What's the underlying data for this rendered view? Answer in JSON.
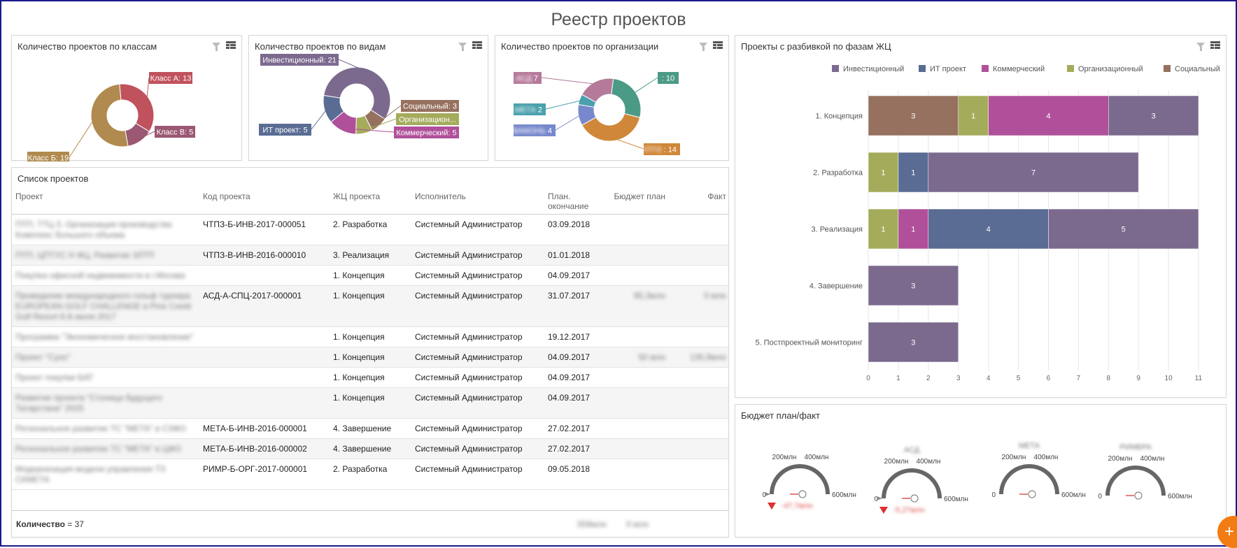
{
  "page": {
    "title": "Реестр проектов"
  },
  "panels": {
    "classes": {
      "title": "Количество проектов по классам"
    },
    "types": {
      "title": "Количество проектов по видам"
    },
    "orgs": {
      "title": "Количество проектов по организации"
    },
    "phases": {
      "title": "Проекты с разбивкой по фазам ЖЦ"
    },
    "list": {
      "title": "Список проектов"
    },
    "budget": {
      "title": "Бюджет план/факт"
    }
  },
  "colors": {
    "investment": "#7b6a8e",
    "it": "#5a6c93",
    "commercial": "#b0509a",
    "organizational": "#a4ac5c",
    "social": "#96715f",
    "class_a": "#c0525d",
    "class_b": "#9a5873",
    "class_b_big": "#b08a4e",
    "teal": "#4b9a86",
    "orange": "#d0873a",
    "cyan": "#4aa0ac",
    "blue": "#7788cc",
    "pinkish": "#b57a9a"
  },
  "chart_data": [
    {
      "type": "pie",
      "labels": [
        "Класс А: 13",
        "Класс В: 5",
        "Класс Б: 19"
      ],
      "categories": [
        "Класс А",
        "Класс В",
        "Класс Б"
      ],
      "values": [
        13,
        5,
        19
      ]
    },
    {
      "type": "pie",
      "labels": [
        "Инвестиционный: 21",
        "Социальный: 3",
        "Организацион...",
        "Коммерческий: 5",
        "ИТ проект: 5"
      ],
      "categories": [
        "Инвестиционный",
        "Социальный",
        "Организационный",
        "Коммерческий",
        "ИТ проект"
      ],
      "values": [
        21,
        3,
        3,
        5,
        5
      ]
    },
    {
      "type": "pie",
      "labels": [
        ": 10",
        ": 14",
        "4",
        "2",
        "7"
      ],
      "values": [
        10,
        14,
        4,
        2,
        7
      ]
    },
    {
      "type": "bar",
      "orientation": "horizontal",
      "stacked": true,
      "categories": [
        "1. Концепция",
        "2. Разработка",
        "3. Реализация",
        "4. Завершение",
        "5. Постпроектный мониторинг"
      ],
      "legend": [
        "Инвестиционный",
        "ИТ проект",
        "Коммерческий",
        "Организационный",
        "Социальный"
      ],
      "legend_position": "top-right",
      "series": [
        {
          "name": "Социальный",
          "values": [
            3,
            0,
            0,
            0,
            0
          ]
        },
        {
          "name": "Организационный",
          "values": [
            1,
            1,
            1,
            0,
            0
          ]
        },
        {
          "name": "Коммерческий",
          "values": [
            4,
            0,
            1,
            0,
            0
          ]
        },
        {
          "name": "ИТ проект",
          "values": [
            0,
            1,
            4,
            0,
            0
          ]
        },
        {
          "name": "Инвестиционный",
          "values": [
            3,
            7,
            5,
            3,
            3
          ]
        }
      ],
      "xlim": [
        0,
        11
      ],
      "xticks": [
        "0",
        "1",
        "2",
        "3",
        "4",
        "5",
        "6",
        "7",
        "8",
        "9",
        "10",
        "11"
      ]
    }
  ],
  "table": {
    "columns": [
      "Проект",
      "Код проекта",
      "ЖЦ проекта",
      "Исполнитель",
      "План. окончание",
      "Бюджет план",
      "Факт"
    ],
    "rows": [
      {
        "name": "ПТП, ТТЦ 3. Организация производства Комплекс большого объема",
        "code": "ЧТПЗ-Б-ИНВ-2017-000051",
        "phase": "2. Разработка",
        "owner": "Системный Администратор",
        "date": "03.09.2018",
        "plan": "",
        "fact": ""
      },
      {
        "name": "ПТП, ЦПТУС Н ФЦ, Развитие ЗЛТП",
        "code": "ЧТПЗ-В-ИНВ-2016-000010",
        "phase": "3. Реализация",
        "owner": "Системный Администратор",
        "date": "01.01.2018",
        "plan": "",
        "fact": ""
      },
      {
        "name": "Покупка офисной недвижимости в г.Москва",
        "code": "",
        "phase": "1. Концепция",
        "owner": "Системный Администратор",
        "date": "04.09.2017",
        "plan": "",
        "fact": ""
      },
      {
        "name": "Проведение международного гольф турнира EUROPEAN GOLF CHALLENGE в Pine Creek Golf Resort 6-8 июля 2017",
        "code": "АСД-А-СПЦ-2017-000001",
        "phase": "1. Концепция",
        "owner": "Системный Администратор",
        "date": "31.07.2017",
        "plan": "95,3млн",
        "fact": "0 млн"
      },
      {
        "name": "Программа \"Экономическое восстановление\"",
        "code": "",
        "phase": "1. Концепция",
        "owner": "Системный Администратор",
        "date": "19.12.2017",
        "plan": "",
        "fact": ""
      },
      {
        "name": "Проект \"Сухо\"",
        "code": "",
        "phase": "1. Концепция",
        "owner": "Системный Администратор",
        "date": "04.09.2017",
        "plan": "50 млн",
        "fact": "135,9млн"
      },
      {
        "name": "Проект покупки БАТ",
        "code": "",
        "phase": "1. Концепция",
        "owner": "Системный Администратор",
        "date": "04.09.2017",
        "plan": "",
        "fact": ""
      },
      {
        "name": "Развитие проекта \"Столица будущего Татарстана\" 2025",
        "code": "",
        "phase": "1. Концепция",
        "owner": "Системный Администратор",
        "date": "04.09.2017",
        "plan": "",
        "fact": ""
      },
      {
        "name": "Региональное развитие ТС \"МЕТА\" в СЗФО",
        "code": "МЕТА-Б-ИНВ-2016-000001",
        "phase": "4. Завершение",
        "owner": "Системный Администратор",
        "date": "27.02.2017",
        "plan": "",
        "fact": ""
      },
      {
        "name": "Региональное развитие ТС \"МЕТА\" в ЦФО",
        "code": "МЕТА-Б-ИНВ-2016-000002",
        "phase": "4. Завершение",
        "owner": "Системный Администратор",
        "date": "27.02.2017",
        "plan": "",
        "fact": ""
      },
      {
        "name": "Модернизация модели управления ТЗ СКМЕТА",
        "code": "РИМР-Б-ОРГ-2017-000001",
        "phase": "2. Разработка",
        "owner": "Системный Администратор",
        "date": "09.05.2018",
        "plan": "",
        "fact": ""
      }
    ],
    "footer": {
      "count_label": "Количество",
      "count_value": "= 37",
      "plan_total": "558млн",
      "fact_total": "0 млн"
    }
  },
  "gauges": [
    {
      "name": "",
      "min": "0",
      "t1": "200млн",
      "t2": "400млн",
      "max": "600млн",
      "value": "-47,7млн"
    },
    {
      "name": "АСД",
      "min": "0",
      "t1": "200млн",
      "t2": "400млн",
      "max": "600млн",
      "value": "-5,27млн"
    },
    {
      "name": "МЕТА",
      "min": "0",
      "t1": "200млн",
      "t2": "400млн",
      "max": "600млн",
      "value": ""
    },
    {
      "name": "РИМБРА",
      "min": "0",
      "t1": "200млн",
      "t2": "400млн",
      "max": "600млн",
      "value": ""
    }
  ],
  "fab": {
    "label": "+"
  }
}
